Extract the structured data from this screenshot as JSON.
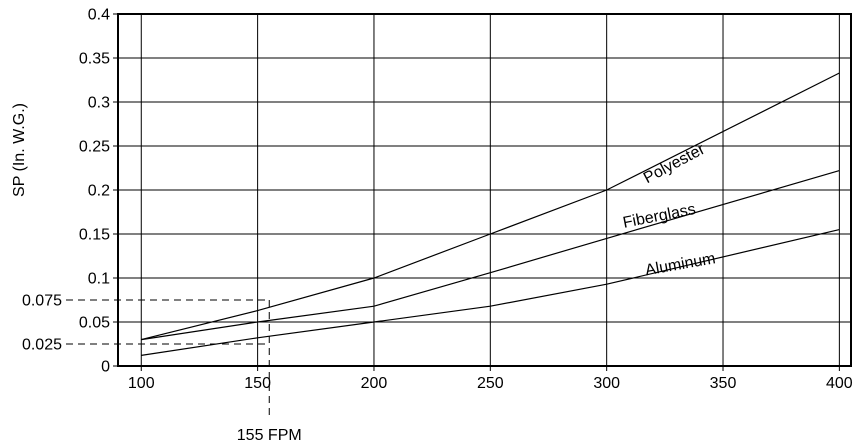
{
  "chart_data": {
    "type": "line",
    "title": "",
    "xlabel": "",
    "ylabel": "SP (In. W.G.)",
    "xlim": [
      90,
      405
    ],
    "ylim": [
      0,
      0.4
    ],
    "x_ticks": [
      {
        "value": 100,
        "label": "100"
      },
      {
        "value": 150,
        "label": "150"
      },
      {
        "value": 200,
        "label": "200"
      },
      {
        "value": 250,
        "label": "250"
      },
      {
        "value": 300,
        "label": "300"
      },
      {
        "value": 350,
        "label": "350"
      },
      {
        "value": 400,
        "label": "400"
      }
    ],
    "y_ticks": [
      {
        "value": 0,
        "label": "0"
      },
      {
        "value": 0.05,
        "label": "0.05"
      },
      {
        "value": 0.1,
        "label": "0.1"
      },
      {
        "value": 0.15,
        "label": "0.15"
      },
      {
        "value": 0.2,
        "label": "0.2"
      },
      {
        "value": 0.25,
        "label": "0.25"
      },
      {
        "value": 0.3,
        "label": "0.3"
      },
      {
        "value": 0.35,
        "label": "0.35"
      },
      {
        "value": 0.4,
        "label": "0.4"
      }
    ],
    "grid": true,
    "series": [
      {
        "name": "Polyester",
        "points": [
          [
            100,
            0.03
          ],
          [
            150,
            0.063
          ],
          [
            200,
            0.1
          ],
          [
            250,
            0.15
          ],
          [
            300,
            0.2
          ],
          [
            400,
            0.333
          ]
        ],
        "label_at": [
          330,
          0.225
        ],
        "label_angle": -28
      },
      {
        "name": "Fiberglass",
        "points": [
          [
            100,
            0.03
          ],
          [
            150,
            0.05
          ],
          [
            200,
            0.068
          ],
          [
            250,
            0.106
          ],
          [
            300,
            0.145
          ],
          [
            400,
            0.222
          ]
        ],
        "label_at": [
          323,
          0.165
        ],
        "label_angle": -11
      },
      {
        "name": "Aluminum",
        "points": [
          [
            100,
            0.012
          ],
          [
            150,
            0.032
          ],
          [
            200,
            0.05
          ],
          [
            250,
            0.068
          ],
          [
            300,
            0.093
          ],
          [
            400,
            0.155
          ]
        ],
        "label_at": [
          332,
          0.11
        ],
        "label_angle": -10
      }
    ],
    "reference": {
      "x_value": 155,
      "x_label": "155 FPM",
      "y_values": [
        {
          "value": 0.075,
          "label": "0.075"
        },
        {
          "value": 0.025,
          "label": "0.025"
        }
      ]
    }
  }
}
